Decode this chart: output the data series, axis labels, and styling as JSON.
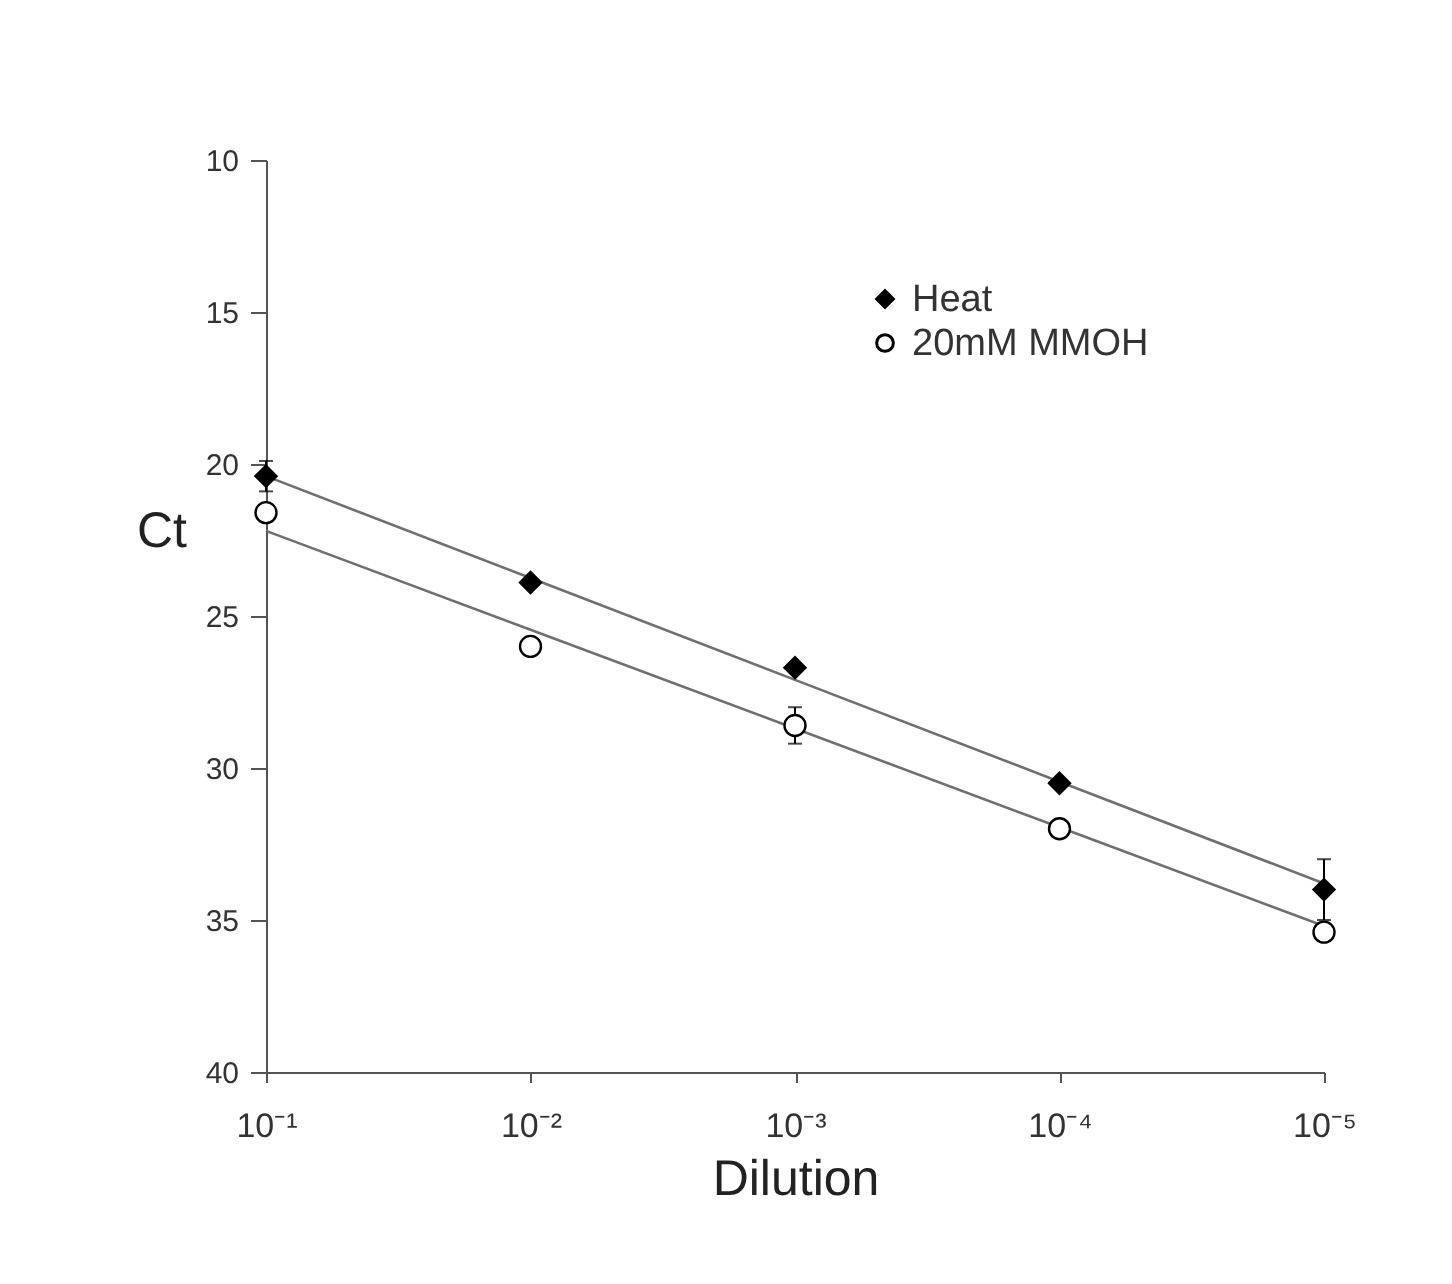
{
  "chart_data": {
    "type": "scatter",
    "xlabel": "Dilution",
    "ylabel": "Ct",
    "categories": [
      "10⁻¹",
      "10⁻²",
      "10⁻³",
      "10⁻⁴",
      "10⁻⁵"
    ],
    "ylim": [
      40,
      10
    ],
    "yticks": [
      10,
      15,
      20,
      25,
      30,
      35,
      40
    ],
    "series": [
      {
        "name": "Heat",
        "color": "#000000",
        "marker": "diamond",
        "values": [
          20.4,
          23.9,
          26.7,
          30.5,
          34.0
        ],
        "errors": [
          0.5,
          null,
          null,
          null,
          1.0
        ]
      },
      {
        "name": "20mM MMOH",
        "color": "#000000",
        "marker": "circle",
        "values": [
          21.6,
          26.0,
          28.6,
          32.0,
          35.4
        ],
        "errors": [
          null,
          null,
          0.6,
          null,
          null
        ]
      },
      {
        "type": "line",
        "color": "#707070",
        "values": [
          20.4,
          23.75,
          27.1,
          30.45,
          33.8
        ]
      },
      {
        "type": "line",
        "color": "#707070",
        "values": [
          22.2,
          25.45,
          28.7,
          31.95,
          35.2
        ]
      }
    ],
    "legend": "top right",
    "grid": false
  }
}
